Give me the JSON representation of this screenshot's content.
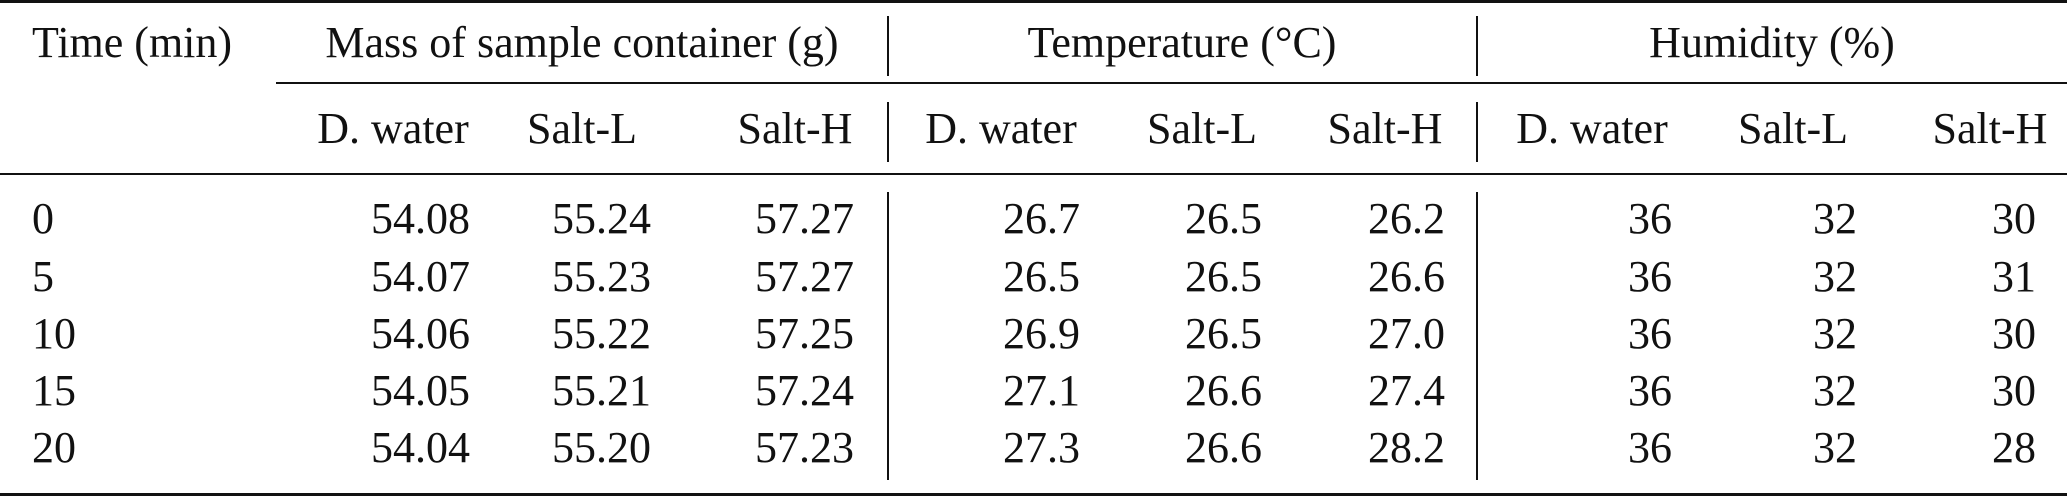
{
  "table": {
    "time_header": "Time (min)",
    "groups": [
      {
        "label": "Mass of sample container (g)"
      },
      {
        "label": "Temperature (°C)"
      },
      {
        "label": "Humidity (%)"
      }
    ],
    "sub_headers": [
      "D. water",
      "Salt-L",
      "Salt-H",
      "D. water",
      "Salt-L",
      "Salt-H",
      "D. water",
      "Salt-L",
      "Salt-H"
    ],
    "rows": [
      {
        "time": "0",
        "values": [
          "54.08",
          "55.24",
          "57.27",
          "26.7",
          "26.5",
          "26.2",
          "36",
          "32",
          "30"
        ]
      },
      {
        "time": "5",
        "values": [
          "54.07",
          "55.23",
          "57.27",
          "26.5",
          "26.5",
          "26.6",
          "36",
          "32",
          "31"
        ]
      },
      {
        "time": "10",
        "values": [
          "54.06",
          "55.22",
          "57.25",
          "26.9",
          "26.5",
          "27.0",
          "36",
          "32",
          "30"
        ]
      },
      {
        "time": "15",
        "values": [
          "54.05",
          "55.21",
          "57.24",
          "27.1",
          "26.6",
          "27.4",
          "36",
          "32",
          "30"
        ]
      },
      {
        "time": "20",
        "values": [
          "54.04",
          "55.20",
          "57.23",
          "27.3",
          "26.6",
          "28.2",
          "36",
          "32",
          "28"
        ]
      }
    ]
  }
}
